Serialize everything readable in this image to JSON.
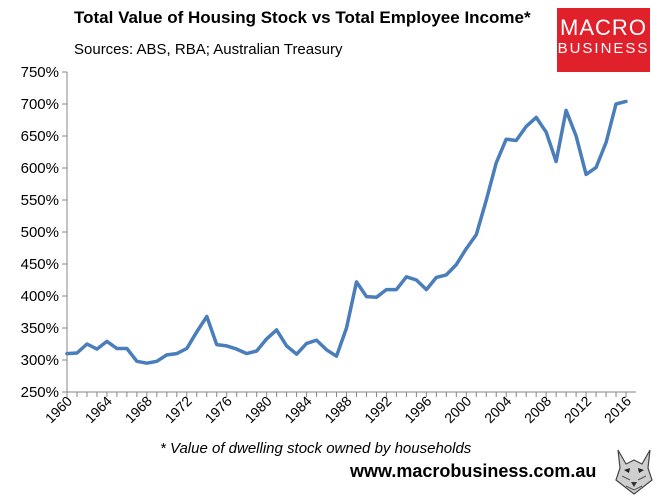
{
  "header": {
    "title": "Total Value of Housing Stock vs Total Employee Income*",
    "subtitle": "Sources: ABS, RBA; Australian Treasury"
  },
  "logo": {
    "line1": "MACRO",
    "line2": "BUSINESS",
    "color": "#e0202a"
  },
  "footer": {
    "footnote": "* Value of dwelling stock owned by households",
    "url": "www.macrobusiness.com.au"
  },
  "chart_data": {
    "type": "line",
    "title": "Total Value of Housing Stock vs Total Employee Income*",
    "subtitle": "Sources: ABS, RBA; Australian Treasury",
    "xlabel": "",
    "ylabel": "",
    "ylim": [
      250,
      750
    ],
    "xlim": [
      1960,
      2017
    ],
    "y_tick_step": 50,
    "y_tick_format": "percent",
    "x_ticks": [
      "1960",
      "1964",
      "1968",
      "1972",
      "1976",
      "1980",
      "1984",
      "1988",
      "1992",
      "1996",
      "2000",
      "2004",
      "2008",
      "2012",
      "2016"
    ],
    "grid": false,
    "line_color": "#4a7ebb",
    "series": [
      {
        "x": [
          1960,
          1961,
          1962,
          1963,
          1964,
          1965,
          1966,
          1967,
          1968,
          1969,
          1970,
          1971,
          1972,
          1973,
          1974,
          1975,
          1976,
          1977,
          1978,
          1979,
          1980,
          1981,
          1982,
          1983,
          1984,
          1985,
          1986,
          1987,
          1988,
          1989,
          1990,
          1991,
          1992,
          1993,
          1994,
          1995,
          1996,
          1997,
          1998,
          1999,
          2000,
          2001,
          2002,
          2003,
          2004,
          2005,
          2006,
          2007,
          2008,
          2009,
          2010,
          2011,
          2012,
          2013,
          2014,
          2015,
          2016
        ],
        "values": [
          310,
          311,
          325,
          317,
          329,
          318,
          318,
          298,
          295,
          298,
          308,
          310,
          318,
          344,
          368,
          324,
          322,
          317,
          310,
          314,
          333,
          347,
          322,
          309,
          326,
          331,
          316,
          306,
          350,
          422,
          399,
          398,
          410,
          410,
          430,
          425,
          410,
          429,
          433,
          449,
          474,
          496,
          550,
          608,
          645,
          643,
          665,
          679,
          656,
          610,
          690,
          650,
          590,
          601,
          640,
          700,
          704
        ]
      }
    ]
  }
}
